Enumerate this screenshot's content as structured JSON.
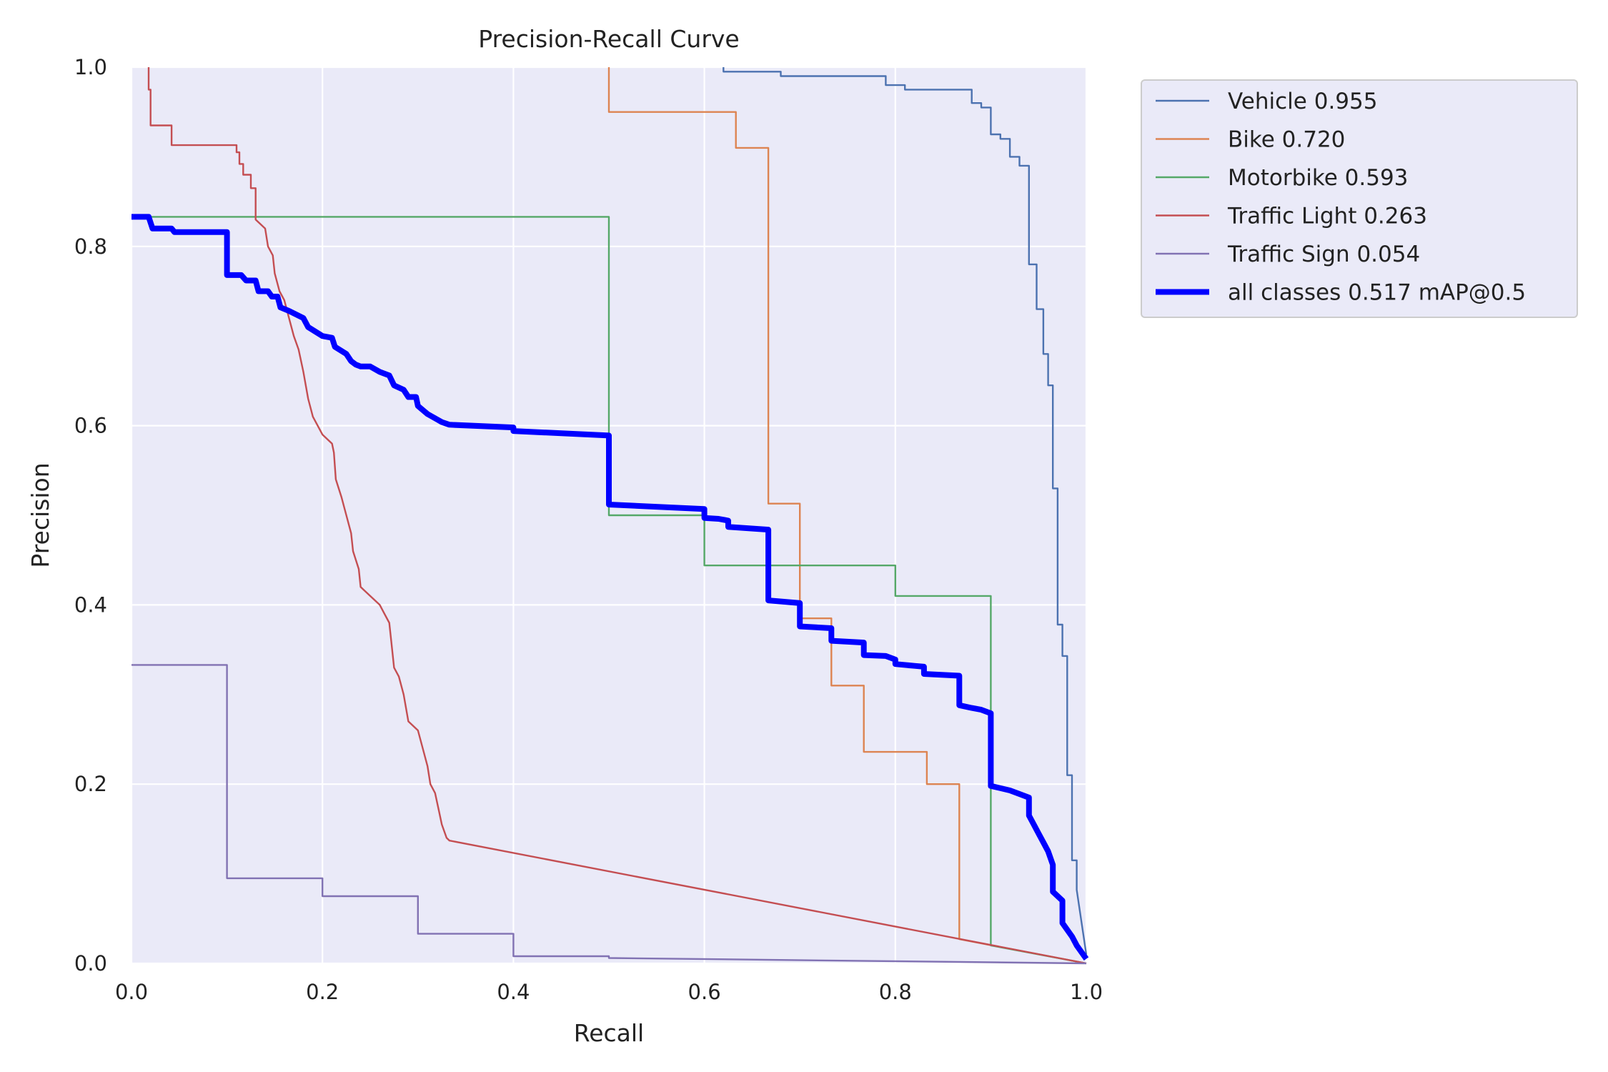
{
  "chart_data": {
    "type": "line",
    "title": "Precision-Recall Curve",
    "xlabel": "Recall",
    "ylabel": "Precision",
    "xlim": [
      0,
      1
    ],
    "ylim": [
      0,
      1
    ],
    "xticks": [
      "0.0",
      "0.2",
      "0.4",
      "0.6",
      "0.8",
      "1.0"
    ],
    "yticks": [
      "0.0",
      "0.2",
      "0.4",
      "0.6",
      "0.8",
      "1.0"
    ],
    "grid": true,
    "legend_position": "outside-right-top",
    "plot_background": "#EAEAF8",
    "series": [
      {
        "name": "Vehicle 0.955",
        "color": "#4C72B0",
        "points": [
          [
            0.62,
            1.0
          ],
          [
            0.62,
            0.995
          ],
          [
            0.68,
            0.995
          ],
          [
            0.68,
            0.99
          ],
          [
            0.79,
            0.99
          ],
          [
            0.79,
            0.98
          ],
          [
            0.81,
            0.98
          ],
          [
            0.81,
            0.975
          ],
          [
            0.88,
            0.975
          ],
          [
            0.88,
            0.96
          ],
          [
            0.89,
            0.96
          ],
          [
            0.89,
            0.955
          ],
          [
            0.9,
            0.955
          ],
          [
            0.9,
            0.925
          ],
          [
            0.91,
            0.925
          ],
          [
            0.91,
            0.92
          ],
          [
            0.92,
            0.92
          ],
          [
            0.92,
            0.9
          ],
          [
            0.93,
            0.9
          ],
          [
            0.93,
            0.89
          ],
          [
            0.94,
            0.89
          ],
          [
            0.94,
            0.78
          ],
          [
            0.948,
            0.78
          ],
          [
            0.948,
            0.73
          ],
          [
            0.955,
            0.73
          ],
          [
            0.955,
            0.68
          ],
          [
            0.96,
            0.68
          ],
          [
            0.96,
            0.645
          ],
          [
            0.965,
            0.645
          ],
          [
            0.965,
            0.53
          ],
          [
            0.97,
            0.53
          ],
          [
            0.97,
            0.378
          ],
          [
            0.975,
            0.378
          ],
          [
            0.975,
            0.343
          ],
          [
            0.98,
            0.343
          ],
          [
            0.98,
            0.21
          ],
          [
            0.985,
            0.21
          ],
          [
            0.985,
            0.115
          ],
          [
            0.99,
            0.115
          ],
          [
            0.99,
            0.082
          ],
          [
            1.0,
            0.01
          ]
        ]
      },
      {
        "name": "Bike 0.720",
        "color": "#DD8452",
        "points": [
          [
            0.5,
            1.0
          ],
          [
            0.5,
            0.95
          ],
          [
            0.633,
            0.95
          ],
          [
            0.633,
            0.91
          ],
          [
            0.667,
            0.91
          ],
          [
            0.667,
            0.513
          ],
          [
            0.7,
            0.513
          ],
          [
            0.7,
            0.385
          ],
          [
            0.733,
            0.385
          ],
          [
            0.733,
            0.31
          ],
          [
            0.767,
            0.31
          ],
          [
            0.767,
            0.236
          ],
          [
            0.833,
            0.236
          ],
          [
            0.833,
            0.2
          ],
          [
            0.867,
            0.2
          ],
          [
            0.867,
            0.027
          ],
          [
            1.0,
            0.0
          ]
        ]
      },
      {
        "name": "Motorbike 0.593",
        "color": "#55A868",
        "points": [
          [
            0.0,
            0.833
          ],
          [
            0.5,
            0.833
          ],
          [
            0.5,
            0.5
          ],
          [
            0.6,
            0.5
          ],
          [
            0.6,
            0.444
          ],
          [
            0.8,
            0.444
          ],
          [
            0.8,
            0.41
          ],
          [
            0.9,
            0.41
          ],
          [
            0.9,
            0.02
          ],
          [
            1.0,
            0.0
          ]
        ]
      },
      {
        "name": "Traffic Light 0.263",
        "color": "#C44E52",
        "points": [
          [
            0.018,
            1.0
          ],
          [
            0.018,
            0.975
          ],
          [
            0.02,
            0.975
          ],
          [
            0.02,
            0.935
          ],
          [
            0.042,
            0.935
          ],
          [
            0.042,
            0.913
          ],
          [
            0.11,
            0.913
          ],
          [
            0.11,
            0.905
          ],
          [
            0.113,
            0.905
          ],
          [
            0.113,
            0.892
          ],
          [
            0.117,
            0.892
          ],
          [
            0.117,
            0.88
          ],
          [
            0.125,
            0.88
          ],
          [
            0.125,
            0.865
          ],
          [
            0.13,
            0.865
          ],
          [
            0.13,
            0.83
          ],
          [
            0.14,
            0.82
          ],
          [
            0.143,
            0.8
          ],
          [
            0.148,
            0.79
          ],
          [
            0.15,
            0.77
          ],
          [
            0.155,
            0.75
          ],
          [
            0.16,
            0.74
          ],
          [
            0.165,
            0.72
          ],
          [
            0.17,
            0.7
          ],
          [
            0.175,
            0.685
          ],
          [
            0.18,
            0.66
          ],
          [
            0.185,
            0.63
          ],
          [
            0.19,
            0.61
          ],
          [
            0.2,
            0.59
          ],
          [
            0.21,
            0.58
          ],
          [
            0.212,
            0.57
          ],
          [
            0.214,
            0.54
          ],
          [
            0.22,
            0.52
          ],
          [
            0.225,
            0.5
          ],
          [
            0.23,
            0.48
          ],
          [
            0.232,
            0.46
          ],
          [
            0.238,
            0.44
          ],
          [
            0.24,
            0.42
          ],
          [
            0.25,
            0.41
          ],
          [
            0.26,
            0.4
          ],
          [
            0.265,
            0.39
          ],
          [
            0.27,
            0.38
          ],
          [
            0.272,
            0.36
          ],
          [
            0.275,
            0.33
          ],
          [
            0.28,
            0.32
          ],
          [
            0.285,
            0.3
          ],
          [
            0.29,
            0.27
          ],
          [
            0.3,
            0.26
          ],
          [
            0.305,
            0.24
          ],
          [
            0.31,
            0.22
          ],
          [
            0.313,
            0.2
          ],
          [
            0.318,
            0.19
          ],
          [
            0.322,
            0.17
          ],
          [
            0.325,
            0.155
          ],
          [
            0.33,
            0.14
          ],
          [
            0.333,
            0.137
          ],
          [
            1.0,
            0.0
          ]
        ]
      },
      {
        "name": "Traffic Sign 0.054",
        "color": "#8172B3",
        "points": [
          [
            0.0,
            0.333
          ],
          [
            0.1,
            0.333
          ],
          [
            0.1,
            0.095
          ],
          [
            0.2,
            0.095
          ],
          [
            0.2,
            0.075
          ],
          [
            0.3,
            0.075
          ],
          [
            0.3,
            0.033
          ],
          [
            0.4,
            0.033
          ],
          [
            0.4,
            0.008
          ],
          [
            0.5,
            0.008
          ],
          [
            0.5,
            0.006
          ],
          [
            1.0,
            0.0
          ]
        ]
      },
      {
        "name": "all classes 0.517 mAP@0.5",
        "color": "#0000FF",
        "bold": true,
        "points": [
          [
            0.0,
            0.833
          ],
          [
            0.018,
            0.833
          ],
          [
            0.022,
            0.82
          ],
          [
            0.042,
            0.82
          ],
          [
            0.045,
            0.816
          ],
          [
            0.1,
            0.816
          ],
          [
            0.1,
            0.768
          ],
          [
            0.115,
            0.768
          ],
          [
            0.12,
            0.762
          ],
          [
            0.13,
            0.762
          ],
          [
            0.133,
            0.75
          ],
          [
            0.143,
            0.75
          ],
          [
            0.147,
            0.744
          ],
          [
            0.153,
            0.744
          ],
          [
            0.156,
            0.732
          ],
          [
            0.165,
            0.728
          ],
          [
            0.18,
            0.72
          ],
          [
            0.185,
            0.71
          ],
          [
            0.2,
            0.7
          ],
          [
            0.21,
            0.698
          ],
          [
            0.213,
            0.688
          ],
          [
            0.225,
            0.68
          ],
          [
            0.23,
            0.672
          ],
          [
            0.235,
            0.668
          ],
          [
            0.24,
            0.666
          ],
          [
            0.25,
            0.666
          ],
          [
            0.26,
            0.66
          ],
          [
            0.27,
            0.656
          ],
          [
            0.275,
            0.645
          ],
          [
            0.285,
            0.64
          ],
          [
            0.29,
            0.632
          ],
          [
            0.298,
            0.632
          ],
          [
            0.3,
            0.622
          ],
          [
            0.31,
            0.613
          ],
          [
            0.32,
            0.607
          ],
          [
            0.325,
            0.604
          ],
          [
            0.333,
            0.601
          ],
          [
            0.4,
            0.598
          ],
          [
            0.4,
            0.594
          ],
          [
            0.5,
            0.589
          ],
          [
            0.5,
            0.512
          ],
          [
            0.6,
            0.507
          ],
          [
            0.6,
            0.497
          ],
          [
            0.615,
            0.496
          ],
          [
            0.625,
            0.494
          ],
          [
            0.625,
            0.487
          ],
          [
            0.667,
            0.484
          ],
          [
            0.667,
            0.405
          ],
          [
            0.7,
            0.402
          ],
          [
            0.7,
            0.376
          ],
          [
            0.733,
            0.374
          ],
          [
            0.733,
            0.36
          ],
          [
            0.767,
            0.358
          ],
          [
            0.767,
            0.344
          ],
          [
            0.79,
            0.343
          ],
          [
            0.8,
            0.339
          ],
          [
            0.8,
            0.334
          ],
          [
            0.82,
            0.332
          ],
          [
            0.83,
            0.331
          ],
          [
            0.83,
            0.323
          ],
          [
            0.867,
            0.321
          ],
          [
            0.867,
            0.288
          ],
          [
            0.88,
            0.285
          ],
          [
            0.89,
            0.283
          ],
          [
            0.9,
            0.279
          ],
          [
            0.9,
            0.198
          ],
          [
            0.92,
            0.193
          ],
          [
            0.93,
            0.189
          ],
          [
            0.94,
            0.185
          ],
          [
            0.94,
            0.165
          ],
          [
            0.945,
            0.155
          ],
          [
            0.95,
            0.145
          ],
          [
            0.955,
            0.135
          ],
          [
            0.96,
            0.125
          ],
          [
            0.965,
            0.11
          ],
          [
            0.965,
            0.08
          ],
          [
            0.975,
            0.07
          ],
          [
            0.975,
            0.045
          ],
          [
            0.985,
            0.03
          ],
          [
            0.99,
            0.02
          ],
          [
            1.0,
            0.005
          ]
        ]
      }
    ]
  }
}
